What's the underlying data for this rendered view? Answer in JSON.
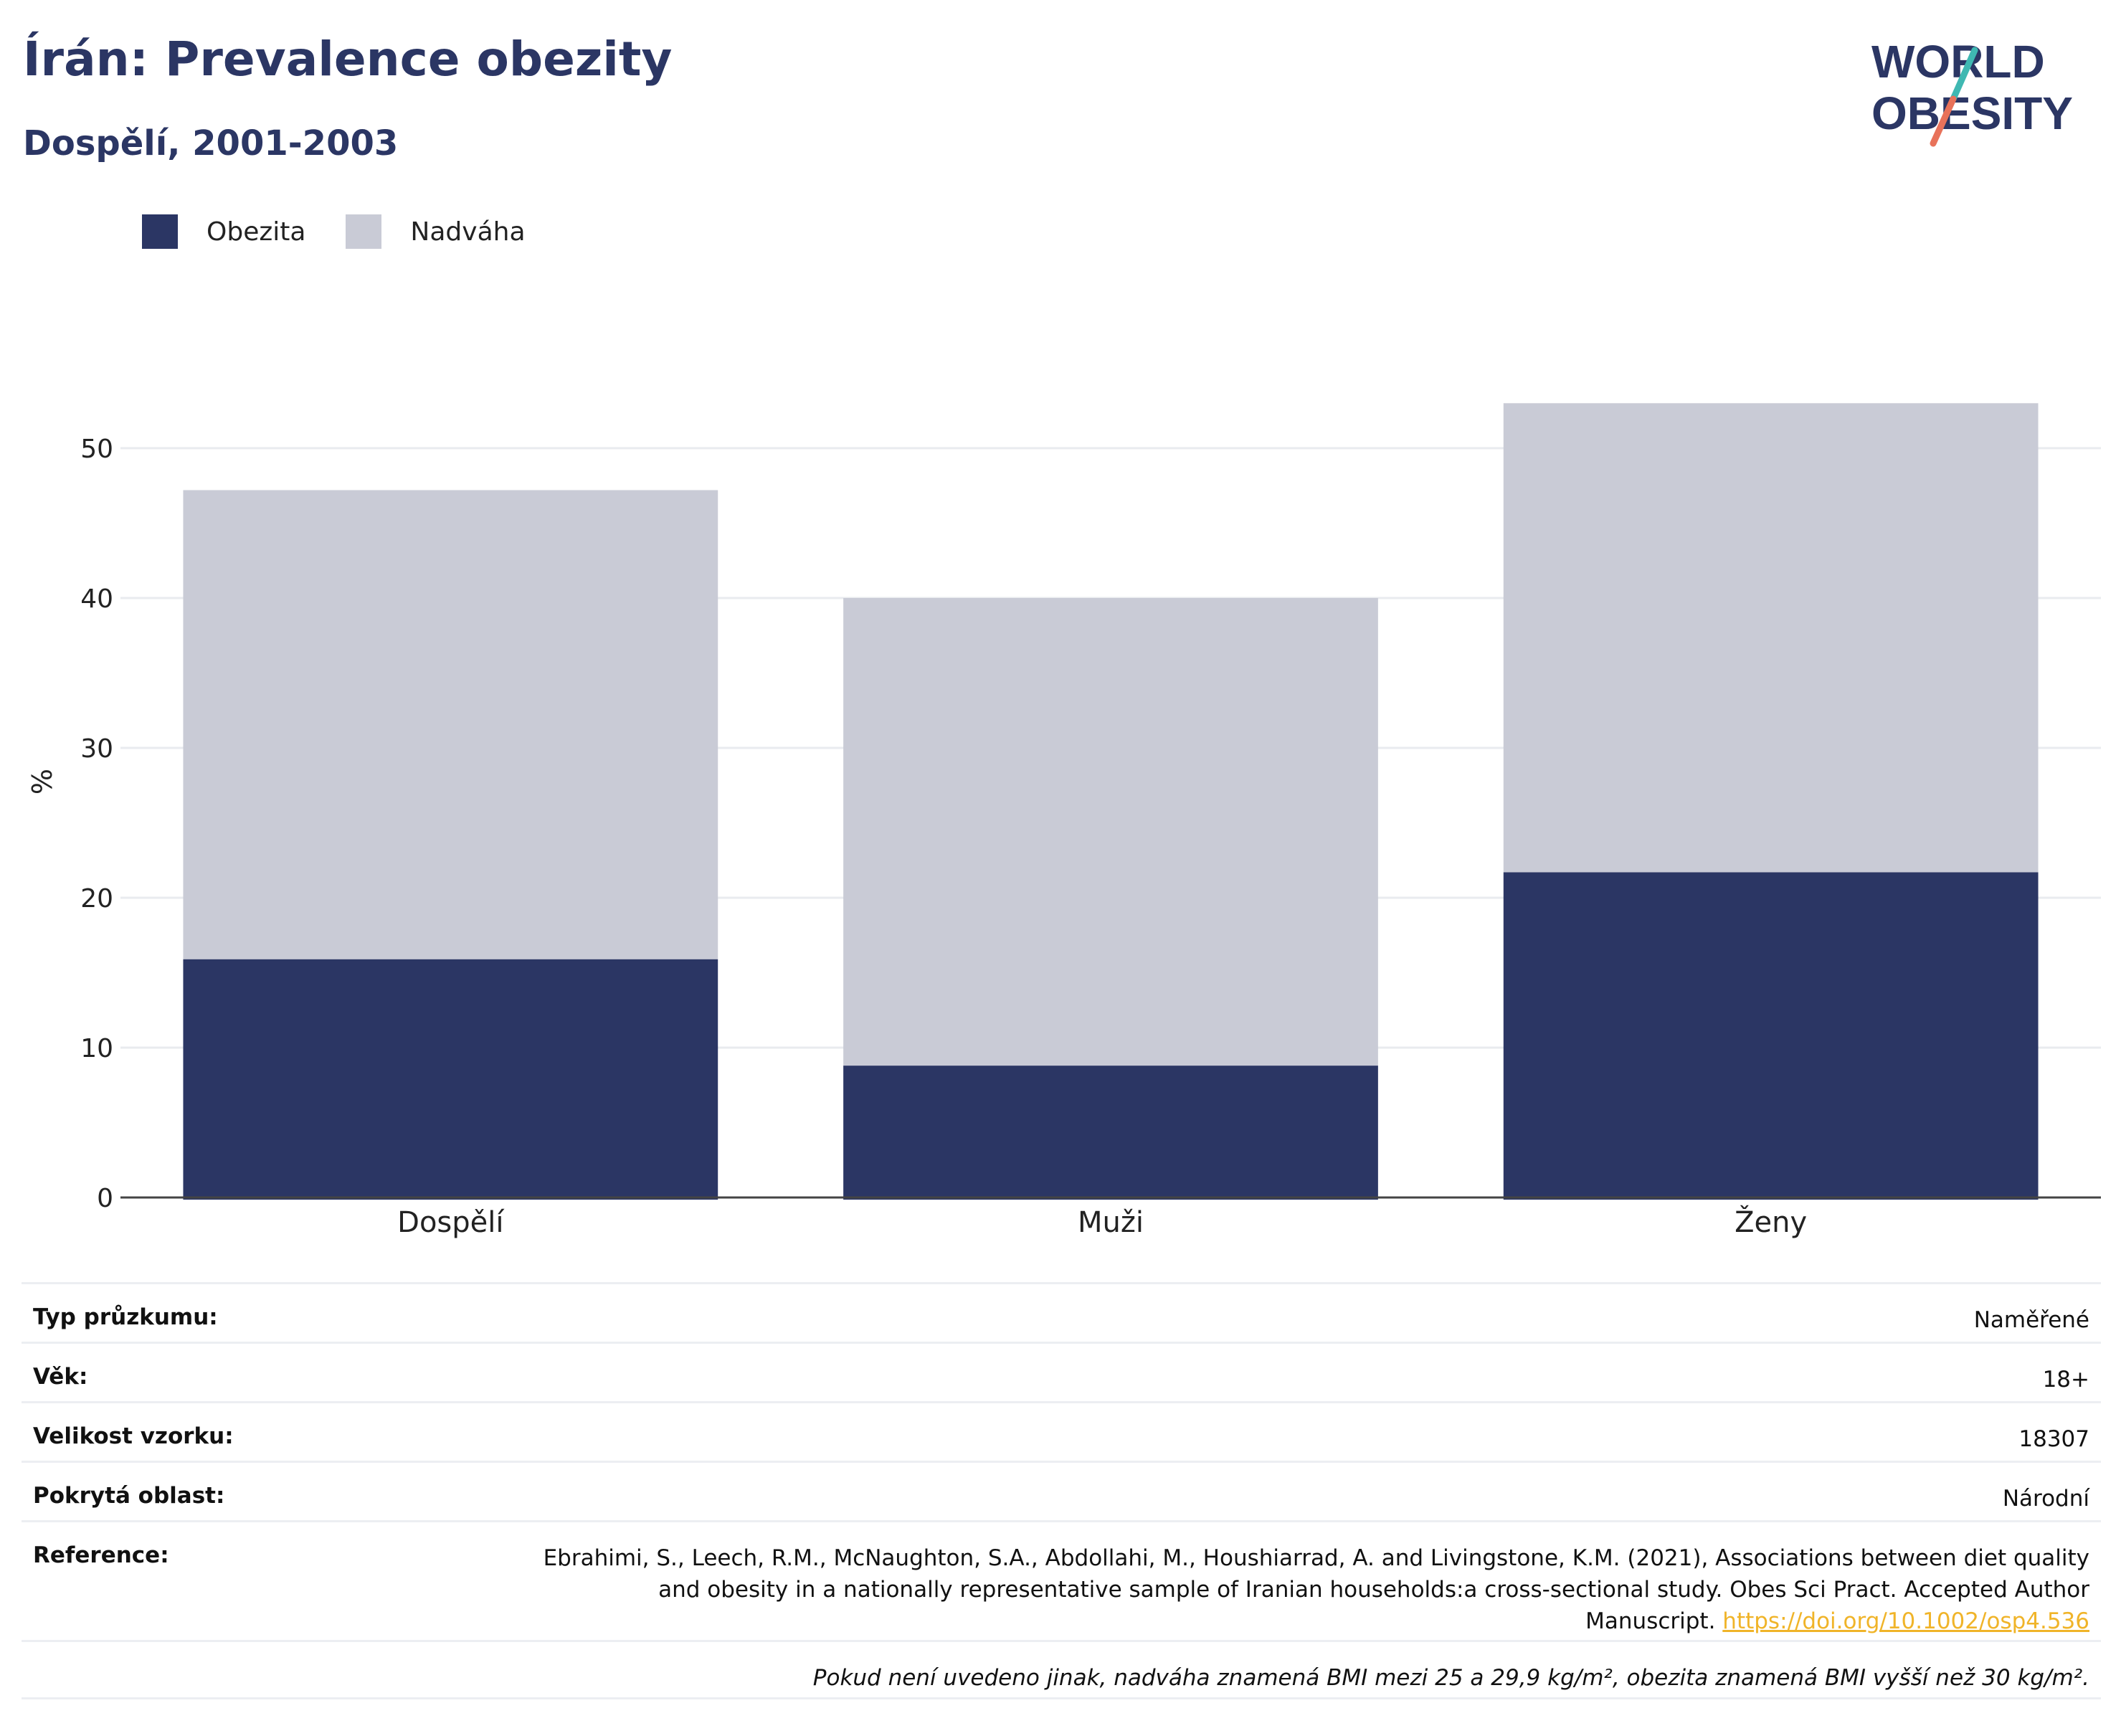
{
  "header": {
    "title": "Írán: Prevalence obezity",
    "subtitle": "Dospělí, 2001-2003"
  },
  "logo": {
    "line1": "WORLD",
    "line2": "OBESITY",
    "colors": [
      "#2b3664",
      "#3fb8b2",
      "#e8725a"
    ]
  },
  "chart_data": {
    "type": "bar",
    "stacked": true,
    "categories": [
      "Dospělí",
      "Muži",
      "Ženy"
    ],
    "series": [
      {
        "name": "Obezita",
        "values": [
          15.9,
          8.8,
          21.7
        ],
        "color": "#2b3664"
      },
      {
        "name": "Nadváha",
        "values": [
          31.3,
          31.2,
          31.3
        ],
        "color": "#c9cbd6"
      }
    ],
    "ylabel": "%",
    "yticks": [
      "0",
      "10",
      "20",
      "30",
      "40",
      "50"
    ],
    "ylim": [
      0,
      55
    ],
    "grid": true,
    "legend": "top-left"
  },
  "info": {
    "survey_type": {
      "label": "Typ průzkumu:",
      "value": "Naměřené"
    },
    "age": {
      "label": "Věk:",
      "value": "18+"
    },
    "sample_size": {
      "label": "Velikost vzorku:",
      "value": "18307"
    },
    "coverage": {
      "label": "Pokrytá oblast:",
      "value": "Národní"
    },
    "reference": {
      "label": "Reference:",
      "text": "Ebrahimi, S., Leech, R.M., McNaughton, S.A., Abdollahi, M., Houshiarrad, A. and Livingstone, K.M. (2021), Associations between diet quality and obesity in a nationally representative sample of Iranian households:a cross-sectional study. Obes Sci Pract. Accepted Author Manuscript.",
      "link": "https://doi.org/10.1002/osp4.536"
    },
    "footnote": "Pokud není uvedeno jinak, nadváha znamená BMI mezi 25 a 29,9 kg/m², obezita znamená BMI vyšší než 30 kg/m²."
  }
}
